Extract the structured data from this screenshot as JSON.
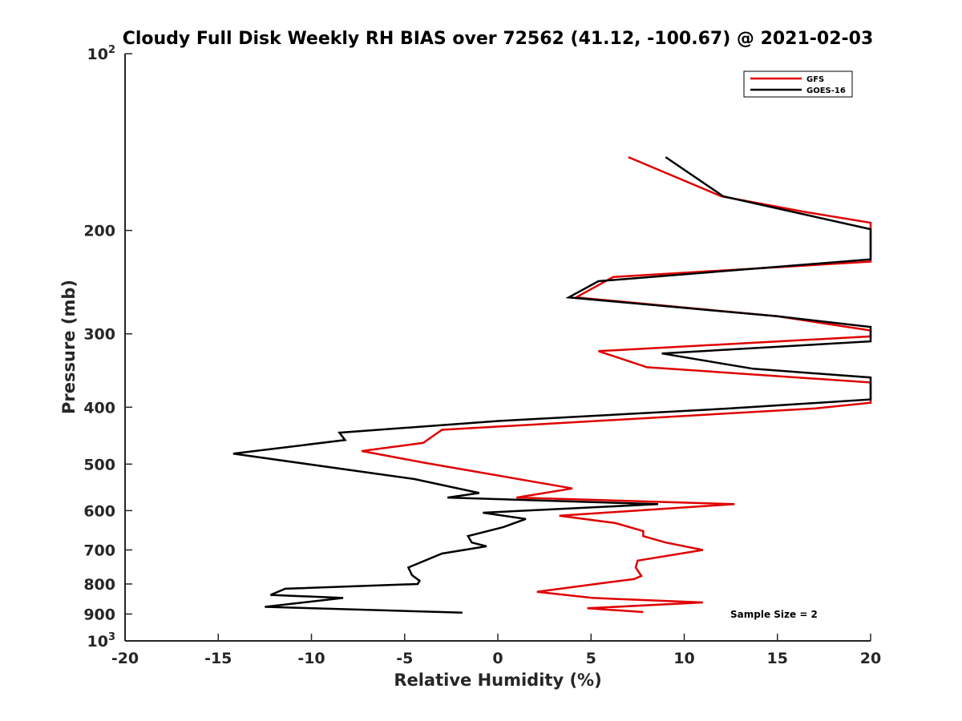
{
  "chart_data": {
    "type": "line",
    "title": "Cloudy Full Disk Weekly RH BIAS over 72562 (41.12, -100.67) @ 2021-02-03",
    "xlabel": "Relative Humidity (%)",
    "ylabel": "Pressure (mb)",
    "xlim": [
      -20,
      20
    ],
    "ylim": [
      100,
      1000
    ],
    "y_scale": "log",
    "y_reversed": true,
    "x_ticks": [
      -20,
      -15,
      -10,
      -5,
      0,
      5,
      10,
      15,
      20
    ],
    "x_tick_labels": [
      "-20",
      "-15",
      "-10",
      "-5",
      "0",
      "5",
      "10",
      "15",
      "20"
    ],
    "y_ticks": [
      100,
      200,
      300,
      400,
      500,
      600,
      700,
      800,
      900,
      1000
    ],
    "y_tick_labels": [
      "10^2",
      "200",
      "300",
      "400",
      "500",
      "600",
      "700",
      "800",
      "900",
      "10^3"
    ],
    "grid": false,
    "legend_position": "top-right",
    "annotation": "Sample Size = 2",
    "series": [
      {
        "name": "GFS",
        "color": "#e00000",
        "points": [
          [
            7.0,
            150
          ],
          [
            12.0,
            175
          ],
          [
            16.5,
            186
          ],
          [
            20.0,
            194
          ],
          [
            20.0,
            226
          ],
          [
            6.2,
            240
          ],
          [
            4.2,
            260
          ],
          [
            15.0,
            280
          ],
          [
            20.0,
            296
          ],
          [
            20.0,
            303
          ],
          [
            5.4,
            321
          ],
          [
            8.0,
            342
          ],
          [
            20.0,
            363
          ],
          [
            20.0,
            393
          ],
          [
            17.0,
            402
          ],
          [
            -3.0,
            437
          ],
          [
            -4.0,
            460
          ],
          [
            -7.3,
            475
          ],
          [
            -4.0,
            497
          ],
          [
            4.0,
            550
          ],
          [
            1.0,
            570
          ],
          [
            12.7,
            585
          ],
          [
            3.3,
            612
          ],
          [
            6.3,
            630
          ],
          [
            7.8,
            650
          ],
          [
            7.8,
            663
          ],
          [
            9.0,
            680
          ],
          [
            11.0,
            700
          ],
          [
            7.5,
            730
          ],
          [
            7.4,
            750
          ],
          [
            7.7,
            775
          ],
          [
            7.3,
            785
          ],
          [
            5.9,
            795
          ],
          [
            2.1,
            825
          ],
          [
            5.1,
            845
          ],
          [
            11.0,
            860
          ],
          [
            4.8,
            880
          ],
          [
            7.8,
            893
          ]
        ]
      },
      {
        "name": "GOES-16",
        "color": "#000000",
        "points": [
          [
            9.0,
            150
          ],
          [
            12.1,
            175
          ],
          [
            20.0,
            199
          ],
          [
            20.0,
            224
          ],
          [
            5.4,
            244
          ],
          [
            3.8,
            260
          ],
          [
            15.0,
            280
          ],
          [
            20.0,
            292
          ],
          [
            20.0,
            309
          ],
          [
            8.8,
            324
          ],
          [
            13.7,
            344
          ],
          [
            20.0,
            356
          ],
          [
            20.0,
            388
          ],
          [
            12.4,
            402
          ],
          [
            0.1,
            422
          ],
          [
            -8.5,
            442
          ],
          [
            -8.2,
            455
          ],
          [
            -14.2,
            480
          ],
          [
            -4.5,
            530
          ],
          [
            -1.0,
            560
          ],
          [
            -2.7,
            570
          ],
          [
            8.6,
            585
          ],
          [
            -0.8,
            605
          ],
          [
            1.5,
            620
          ],
          [
            0.3,
            640
          ],
          [
            -1.6,
            663
          ],
          [
            -1.4,
            680
          ],
          [
            -0.6,
            690
          ],
          [
            -3.0,
            710
          ],
          [
            -4.8,
            750
          ],
          [
            -4.6,
            773
          ],
          [
            -4.2,
            790
          ],
          [
            -4.3,
            800
          ],
          [
            -11.4,
            815
          ],
          [
            -12.2,
            835
          ],
          [
            -8.3,
            845
          ],
          [
            -12.5,
            875
          ],
          [
            -1.9,
            895
          ]
        ]
      }
    ]
  }
}
